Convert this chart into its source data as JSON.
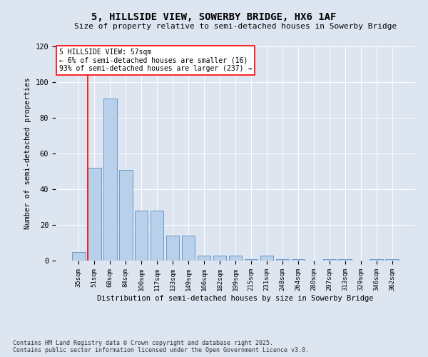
{
  "title": "5, HILLSIDE VIEW, SOWERBY BRIDGE, HX6 1AF",
  "subtitle": "Size of property relative to semi-detached houses in Sowerby Bridge",
  "xlabel": "Distribution of semi-detached houses by size in Sowerby Bridge",
  "ylabel": "Number of semi-detached properties",
  "categories": [
    "35sqm",
    "51sqm",
    "68sqm",
    "84sqm",
    "100sqm",
    "117sqm",
    "133sqm",
    "149sqm",
    "166sqm",
    "182sqm",
    "199sqm",
    "215sqm",
    "231sqm",
    "248sqm",
    "264sqm",
    "280sqm",
    "297sqm",
    "313sqm",
    "329sqm",
    "346sqm",
    "362sqm"
  ],
  "values": [
    5,
    52,
    91,
    51,
    28,
    28,
    14,
    14,
    3,
    3,
    3,
    1,
    3,
    1,
    1,
    0,
    1,
    1,
    0,
    1,
    1
  ],
  "bar_color": "#b8d0ea",
  "bar_edge_color": "#6699cc",
  "annotation_title": "5 HILLSIDE VIEW: 57sqm",
  "annotation_line1": "← 6% of semi-detached houses are smaller (16)",
  "annotation_line2": "93% of semi-detached houses are larger (237) →",
  "ylim": [
    0,
    120
  ],
  "yticks": [
    0,
    20,
    40,
    60,
    80,
    100,
    120
  ],
  "footer_line1": "Contains HM Land Registry data © Crown copyright and database right 2025.",
  "footer_line2": "Contains public sector information licensed under the Open Government Licence v3.0.",
  "bg_color": "#dde5f0",
  "plot_bg_color": "#dde5f0"
}
